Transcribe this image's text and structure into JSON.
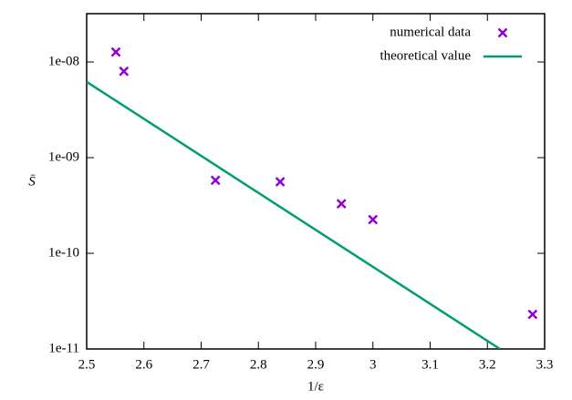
{
  "chart_data": {
    "type": "scatter",
    "xlabel": "1/ε",
    "ylabel": "S̄",
    "log_y": true,
    "xlim": [
      2.5,
      3.3
    ],
    "xticks": [
      2.5,
      2.6,
      2.7,
      2.8,
      2.9,
      3,
      3.1,
      3.2,
      3.3
    ],
    "ylim": [
      1e-11,
      3.2e-08
    ],
    "yticks": [
      {
        "value": 1e-11,
        "label": "1e-11"
      },
      {
        "value": 1e-10,
        "label": "1e-10"
      },
      {
        "value": 1e-09,
        "label": "1e-09"
      },
      {
        "value": 1e-08,
        "label": "1e-08"
      }
    ],
    "legend": "top-right",
    "series": [
      {
        "name": "numerical data",
        "type": "scatter",
        "color": "#9400d3",
        "x": [
          2.551,
          2.565,
          2.725,
          2.838,
          2.945,
          3.0,
          3.279
        ],
        "values": [
          1.27e-08,
          8e-09,
          5.8e-10,
          5.6e-10,
          3.3e-10,
          2.25e-10,
          2.3e-11
        ]
      },
      {
        "name": "theoretical value",
        "type": "line",
        "color": "#009e73",
        "x": [
          2.5,
          3.222
        ],
        "values": [
          6.2e-09,
          1e-11
        ]
      }
    ]
  }
}
